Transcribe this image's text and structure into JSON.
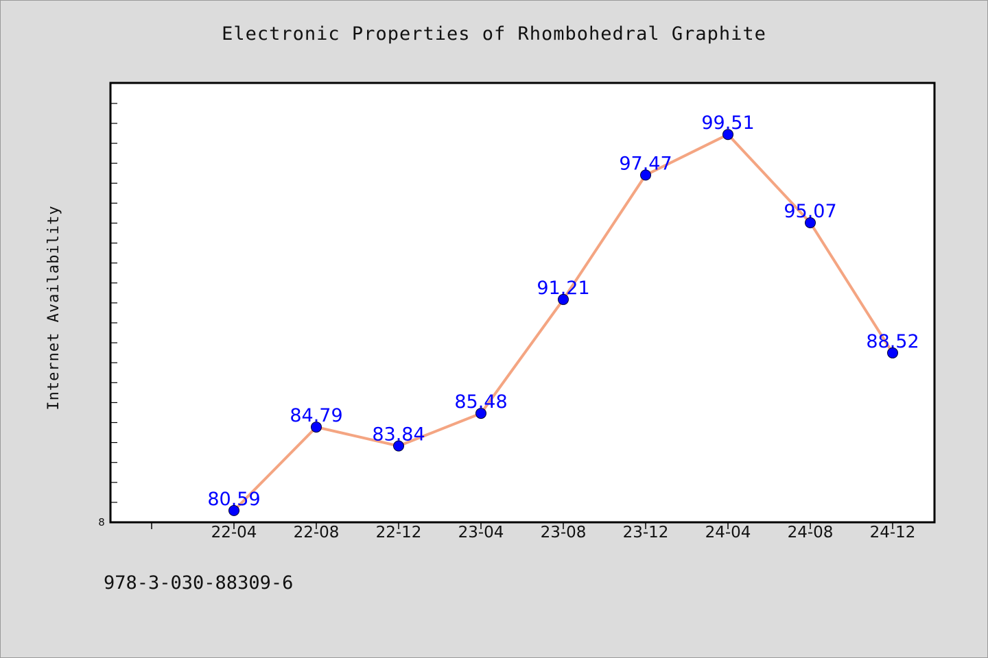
{
  "chart_data": {
    "type": "line",
    "title": "Electronic Properties of Rhombohedral Graphite",
    "xlabel": "",
    "ylabel": "Internet Availability",
    "categories": [
      "22-04",
      "22-08",
      "22-12",
      "23-04",
      "23-08",
      "23-12",
      "24-04",
      "24-08",
      "24-12"
    ],
    "series": [
      {
        "values": [
          80.59,
          84.79,
          83.84,
          85.48,
          91.21,
          97.47,
          99.51,
          95.07,
          88.52
        ]
      }
    ],
    "ylim": [
      80.0,
      102.0
    ],
    "y_tick_labels": [
      "8"
    ],
    "grid": false,
    "colors": {
      "line": "#f4a582",
      "marker": "#0000ff",
      "labels": "#0000ff",
      "plot_background": "#ffffff",
      "figure_background": "#dcdcdc"
    }
  },
  "footer_text": "978-3-030-88309-6"
}
